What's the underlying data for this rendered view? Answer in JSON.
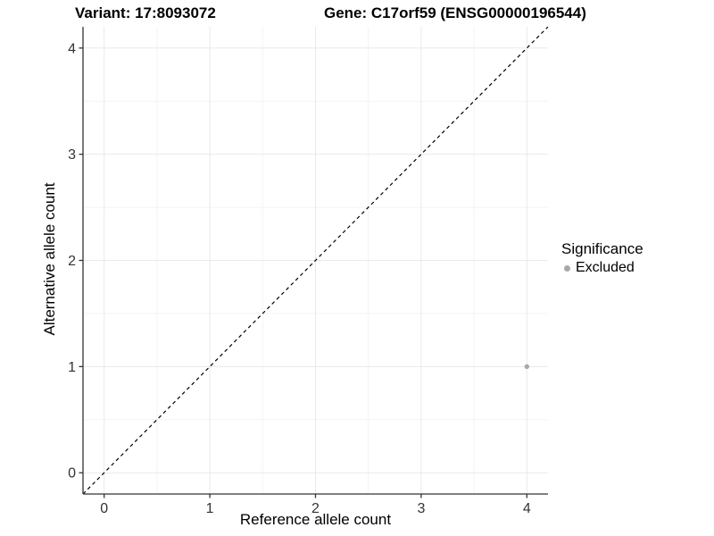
{
  "header": {
    "variant_title": "Variant: 17:8093072",
    "gene_title": "Gene: C17orf59 (ENSG00000196544)"
  },
  "chart_data": {
    "type": "scatter",
    "xlabel": "Reference allele count",
    "ylabel": "Alternative allele count",
    "xticks": [
      0,
      1,
      2,
      3,
      4
    ],
    "yticks": [
      0,
      1,
      2,
      3,
      4
    ],
    "xlim": [
      -0.2,
      4.2
    ],
    "ylim": [
      -0.2,
      4.2
    ],
    "minor_step": 0.5,
    "grid": "major+minor",
    "reference_line": {
      "equation": "y = x",
      "style": "dashed",
      "color": "#000000"
    },
    "series": [
      {
        "name": "Excluded",
        "color": "#a8a8a8",
        "marker": "circle",
        "points": [
          {
            "x": 4,
            "y": 1
          }
        ]
      }
    ],
    "legend": {
      "title": "Significance",
      "position": "right",
      "entries": [
        {
          "label": "Excluded",
          "color": "#a8a8a8"
        }
      ]
    }
  },
  "colors": {
    "background": "#ffffff",
    "grid_major": "#e9e9e9",
    "grid_minor": "#f4f4f4",
    "axis_line": "#333333",
    "tick_text": "#333333",
    "point": "#a8a8a8"
  }
}
